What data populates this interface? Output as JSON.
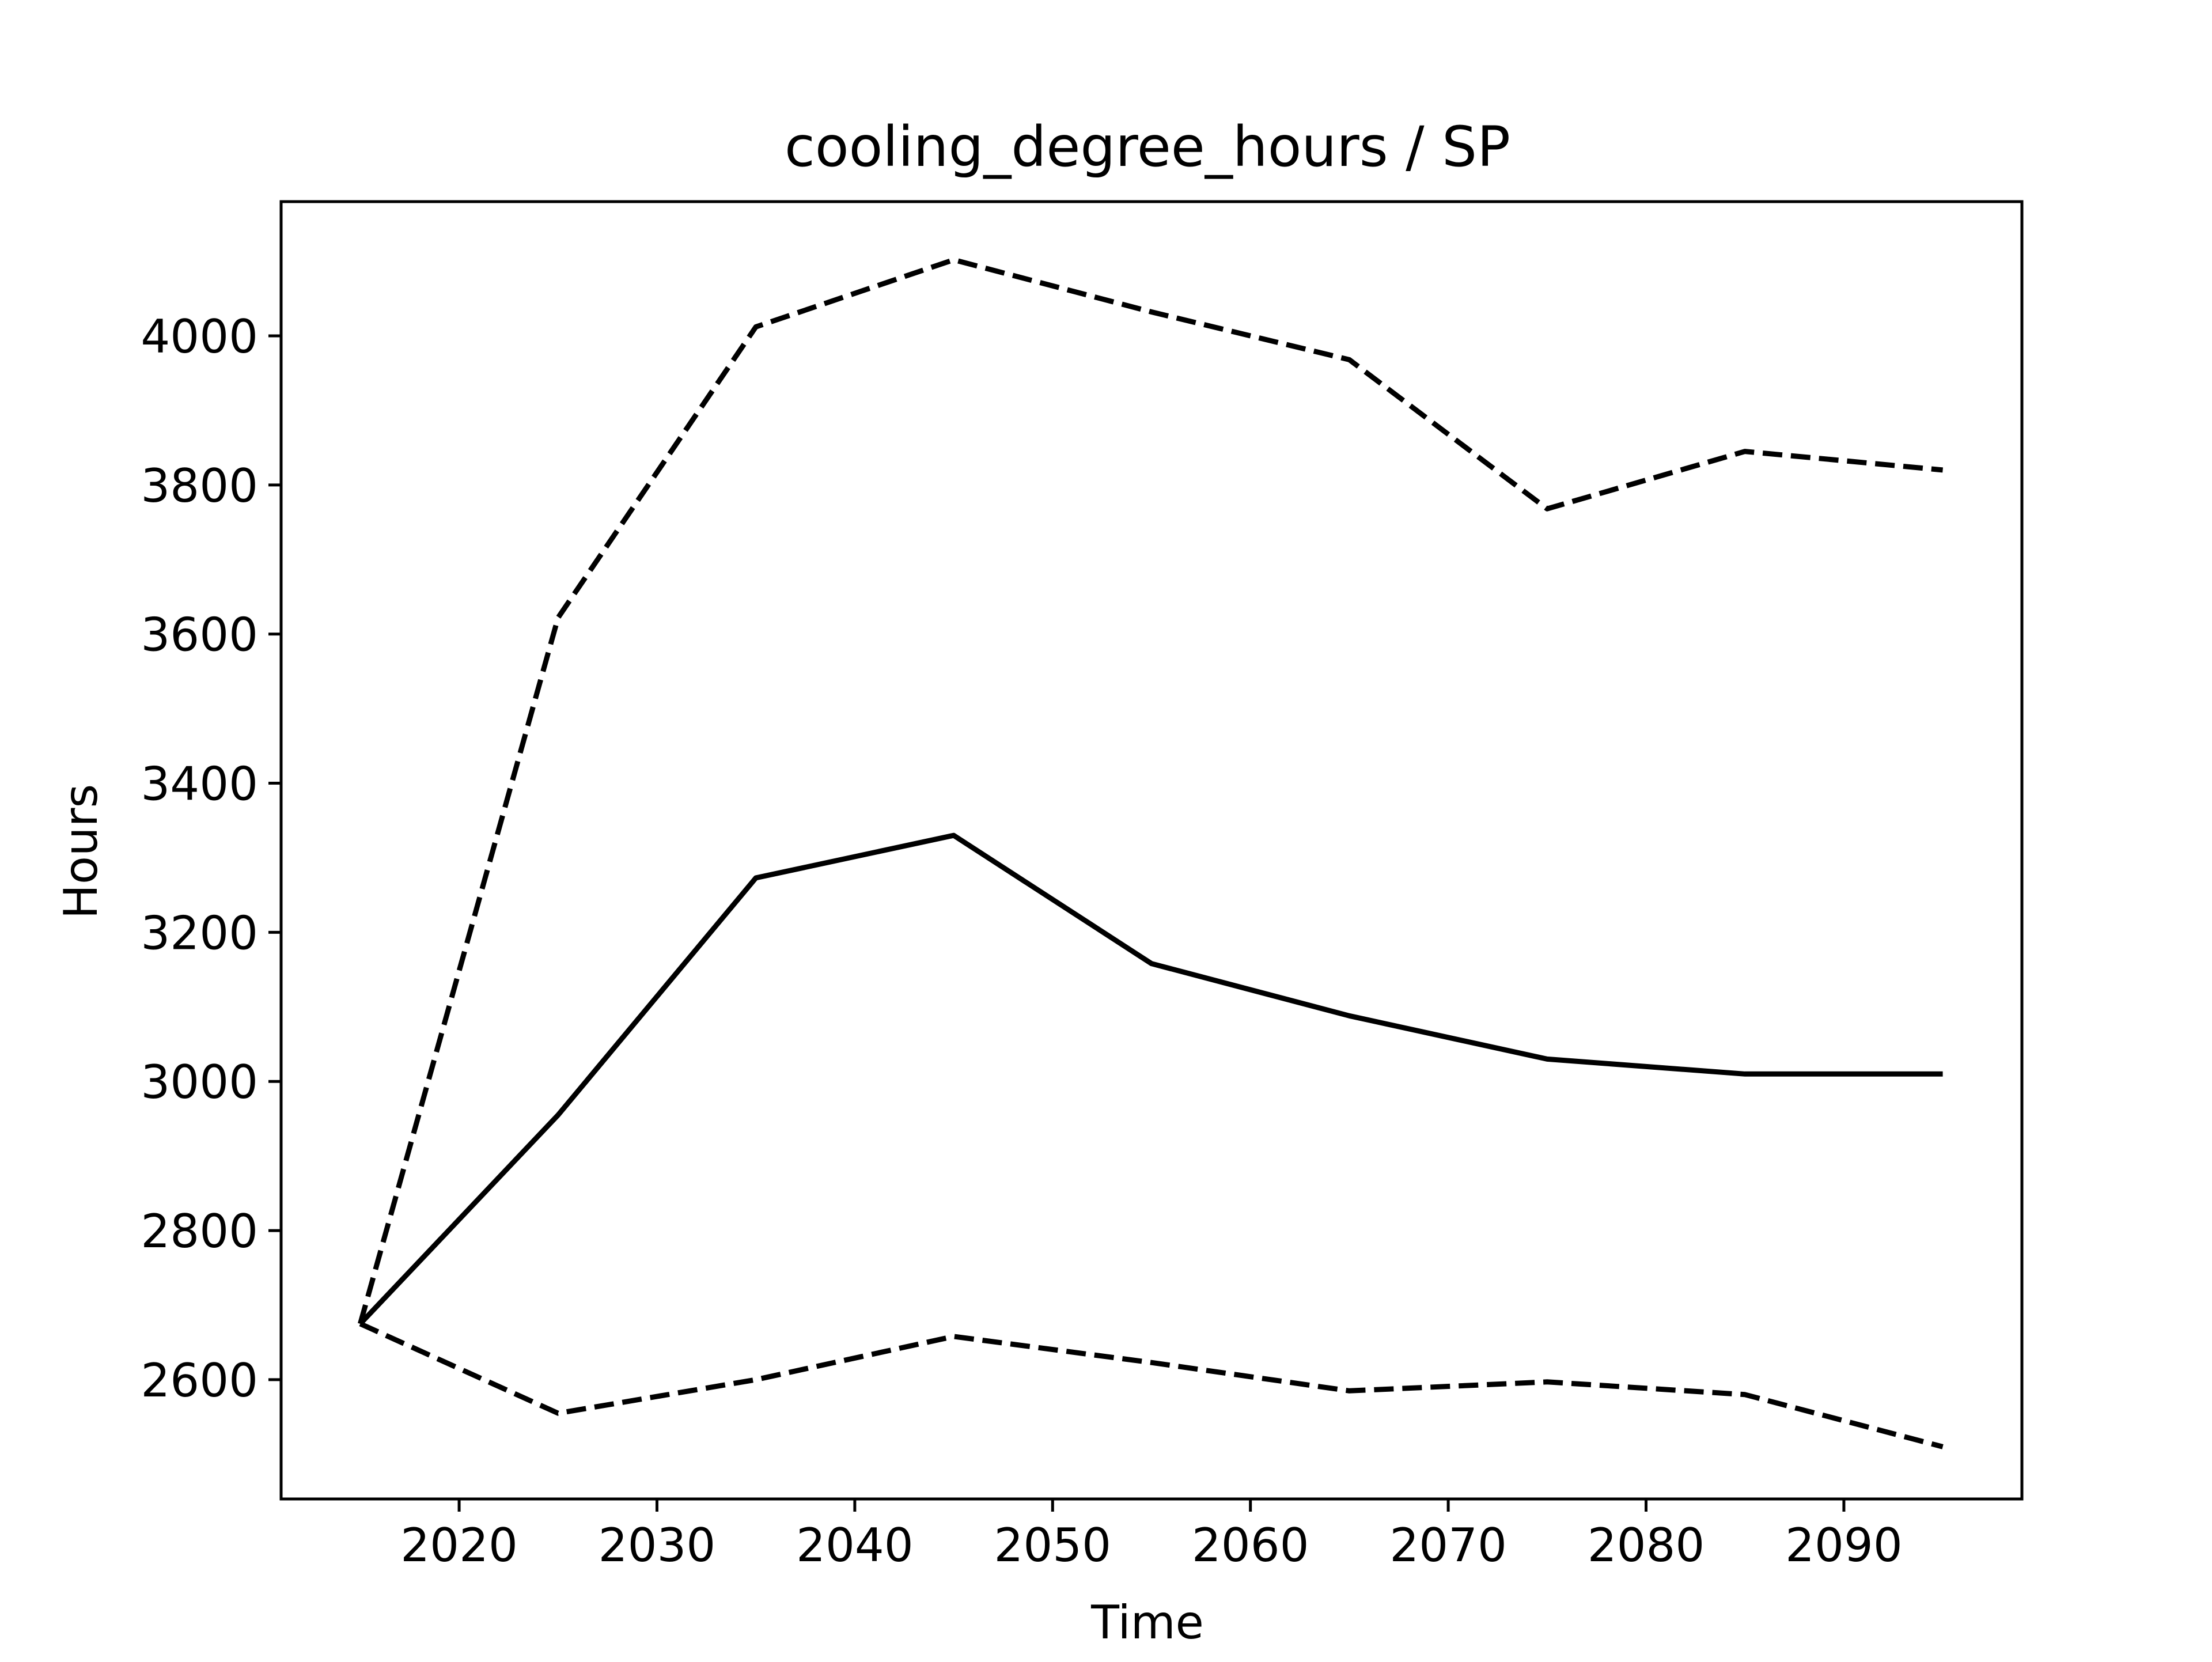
{
  "chart_data": {
    "type": "line",
    "title": "cooling_degree_hours / SP",
    "xlabel": "Time",
    "ylabel": "Hours",
    "x": [
      2015,
      2025,
      2035,
      2045,
      2055,
      2065,
      2075,
      2085,
      2095
    ],
    "series": [
      {
        "style": "solid",
        "values": [
          2675,
          2955,
          3273,
          3330,
          3158,
          3088,
          3030,
          3010,
          3010
        ]
      },
      {
        "style": "dashed",
        "values": [
          2675,
          3622,
          4012,
          4102,
          4032,
          3968,
          3768,
          3845,
          3820
        ]
      },
      {
        "style": "dashed",
        "values": [
          2675,
          2555,
          2600,
          2658,
          2623,
          2585,
          2597,
          2580,
          2510
        ]
      }
    ],
    "xlim": [
      2011,
      2099
    ],
    "ylim": [
      2440,
      4180
    ],
    "xticks": [
      2020,
      2030,
      2040,
      2050,
      2060,
      2070,
      2080,
      2090
    ],
    "yticks": [
      2600,
      2800,
      3000,
      3200,
      3400,
      3600,
      3800,
      4000
    ],
    "grid": false,
    "line_color": "#000000"
  }
}
